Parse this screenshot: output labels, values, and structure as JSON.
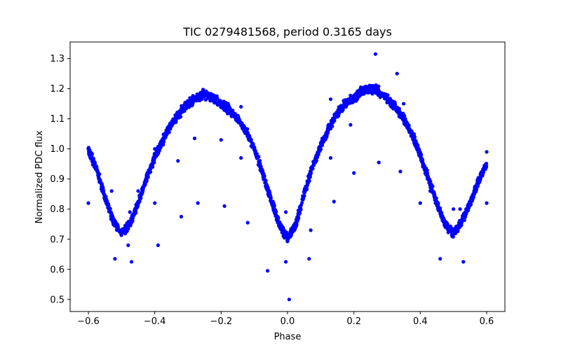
{
  "chart_data": {
    "type": "scatter",
    "title": "TIC 0279481568, period 0.3165 days",
    "xlabel": "Phase",
    "ylabel": "Normalized PDC flux",
    "xlim": [
      -0.655,
      0.655
    ],
    "ylim": [
      0.46,
      1.355
    ],
    "xticks": [
      -0.6,
      -0.4,
      -0.2,
      0.0,
      0.2,
      0.4,
      0.6
    ],
    "xtick_labels": [
      "−0.6",
      "−0.4",
      "−0.2",
      "0.0",
      "0.2",
      "0.4",
      "0.6"
    ],
    "yticks": [
      0.5,
      0.6,
      0.7,
      0.8,
      0.9,
      1.0,
      1.1,
      1.2,
      1.3
    ],
    "ytick_labels": [
      "0.5",
      "0.6",
      "0.7",
      "0.8",
      "0.9",
      "1.0",
      "1.1",
      "1.2",
      "1.3"
    ],
    "grid": false,
    "marker_color": "#0000ff",
    "series": [
      {
        "trend_points": [
          [
            -0.6,
            1.0
          ],
          [
            -0.575,
            0.93
          ],
          [
            -0.55,
            0.84
          ],
          [
            -0.525,
            0.76
          ],
          [
            -0.5,
            0.72
          ],
          [
            -0.475,
            0.75
          ],
          [
            -0.45,
            0.82
          ],
          [
            -0.425,
            0.9
          ],
          [
            -0.4,
            0.97
          ],
          [
            -0.375,
            1.03
          ],
          [
            -0.35,
            1.08
          ],
          [
            -0.325,
            1.12
          ],
          [
            -0.3,
            1.15
          ],
          [
            -0.275,
            1.17
          ],
          [
            -0.25,
            1.18
          ],
          [
            -0.225,
            1.17
          ],
          [
            -0.2,
            1.15
          ],
          [
            -0.175,
            1.13
          ],
          [
            -0.15,
            1.1
          ],
          [
            -0.125,
            1.06
          ],
          [
            -0.1,
            1.0
          ],
          [
            -0.075,
            0.92
          ],
          [
            -0.05,
            0.83
          ],
          [
            -0.025,
            0.75
          ],
          [
            0.0,
            0.7
          ],
          [
            0.025,
            0.75
          ],
          [
            0.05,
            0.85
          ],
          [
            0.075,
            0.94
          ],
          [
            0.1,
            1.01
          ],
          [
            0.125,
            1.07
          ],
          [
            0.15,
            1.12
          ],
          [
            0.175,
            1.15
          ],
          [
            0.2,
            1.17
          ],
          [
            0.225,
            1.19
          ],
          [
            0.25,
            1.2
          ],
          [
            0.275,
            1.19
          ],
          [
            0.3,
            1.17
          ],
          [
            0.325,
            1.14
          ],
          [
            0.35,
            1.1
          ],
          [
            0.375,
            1.05
          ],
          [
            0.4,
            0.98
          ],
          [
            0.425,
            0.9
          ],
          [
            0.45,
            0.82
          ],
          [
            0.475,
            0.75
          ],
          [
            0.5,
            0.72
          ],
          [
            0.525,
            0.76
          ],
          [
            0.55,
            0.82
          ],
          [
            0.575,
            0.89
          ],
          [
            0.6,
            0.95
          ]
        ],
        "outliers": [
          [
            -0.6,
            0.82
          ],
          [
            -0.53,
            0.86
          ],
          [
            -0.52,
            0.635
          ],
          [
            -0.47,
            0.625
          ],
          [
            -0.48,
            0.68
          ],
          [
            -0.475,
            0.79
          ],
          [
            -0.4,
            0.82
          ],
          [
            -0.39,
            0.68
          ],
          [
            -0.4,
            1.0
          ],
          [
            -0.32,
            0.775
          ],
          [
            -0.33,
            0.96
          ],
          [
            -0.28,
            1.035
          ],
          [
            -0.27,
            0.82
          ],
          [
            -0.2,
            1.03
          ],
          [
            -0.19,
            0.81
          ],
          [
            -0.14,
            0.97
          ],
          [
            -0.12,
            0.755
          ],
          [
            -0.14,
            1.14
          ],
          [
            -0.06,
            0.595
          ],
          [
            -0.005,
            0.79
          ],
          [
            -0.005,
            0.625
          ],
          [
            0.005,
            0.5
          ],
          [
            0.065,
            0.635
          ],
          [
            0.07,
            0.73
          ],
          [
            0.13,
            0.97
          ],
          [
            0.14,
            0.825
          ],
          [
            0.13,
            1.165
          ],
          [
            0.2,
            0.92
          ],
          [
            0.19,
            1.08
          ],
          [
            0.265,
            1.315
          ],
          [
            0.275,
            0.955
          ],
          [
            0.33,
            1.25
          ],
          [
            0.34,
            0.925
          ],
          [
            0.3,
            1.155
          ],
          [
            0.4,
            0.82
          ],
          [
            0.46,
            0.635
          ],
          [
            0.53,
            0.625
          ],
          [
            0.52,
            0.8
          ],
          [
            0.6,
            0.82
          ],
          [
            0.6,
            0.99
          ],
          [
            0.5,
            0.8
          ],
          [
            0.43,
            0.86
          ],
          [
            0.35,
            1.15
          ],
          [
            -0.45,
            0.86
          ],
          [
            0.06,
            0.88
          ]
        ]
      }
    ]
  }
}
